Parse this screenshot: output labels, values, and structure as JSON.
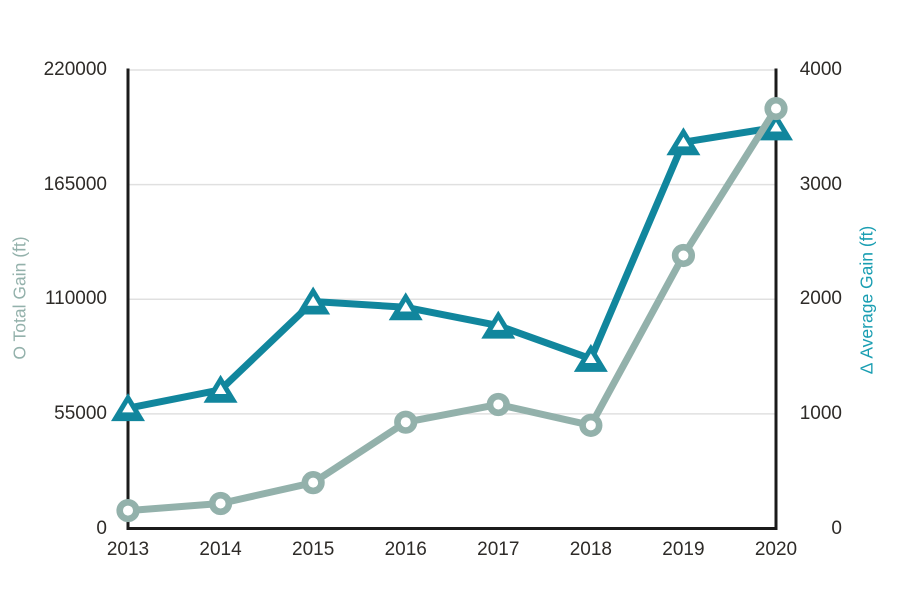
{
  "chart_data": {
    "type": "line",
    "description": "Dual-axis line chart, no title; axis titles with marker glyphs act as legend",
    "x_categories": [
      "2013",
      "2014",
      "2015",
      "2016",
      "2017",
      "2018",
      "2019",
      "2020"
    ],
    "series": [
      {
        "name": "Total Gain",
        "axis": "left",
        "marker": "circle",
        "color": "#93b1ab",
        "values": [
          8600,
          12000,
          22000,
          51000,
          59500,
          49500,
          131000,
          201500
        ]
      },
      {
        "name": "Average Gain",
        "axis": "right",
        "marker": "triangle",
        "color": "#11869d",
        "values": [
          1050,
          1210,
          1980,
          1930,
          1770,
          1480,
          3370,
          3500
        ]
      }
    ],
    "left_axis": {
      "title": "O Total Gain (ft)",
      "title_color": "#93b1ab",
      "tick_labels": [
        "0",
        "55000",
        "110000",
        "165000",
        "220000"
      ],
      "tick_values": [
        0,
        55000,
        110000,
        165000,
        220000
      ],
      "range": [
        0,
        220000
      ]
    },
    "right_axis": {
      "title": "Δ Average Gain (ft)",
      "title_color": "#1a9eb2",
      "tick_labels": [
        "0",
        "1000",
        "2000",
        "3000",
        "4000"
      ],
      "tick_values": [
        0,
        1000,
        2000,
        3000,
        4000
      ],
      "range": [
        0,
        4000
      ]
    },
    "x_axis": {
      "tick_labels": [
        "2013",
        "2014",
        "2015",
        "2016",
        "2017",
        "2018",
        "2019",
        "2020"
      ]
    },
    "grid": "horizontal",
    "legend_position": "none"
  },
  "colors": {
    "background": "#ffffff",
    "teal_series": "#11869d",
    "sage_series": "#93b1ab",
    "right_title_teal": "#1a9eb2",
    "left_title_sage": "#93b1ab",
    "axis_line": "#1b1b1b",
    "gridline": "#e0e0e0",
    "tick_text": "#2e2b28"
  }
}
